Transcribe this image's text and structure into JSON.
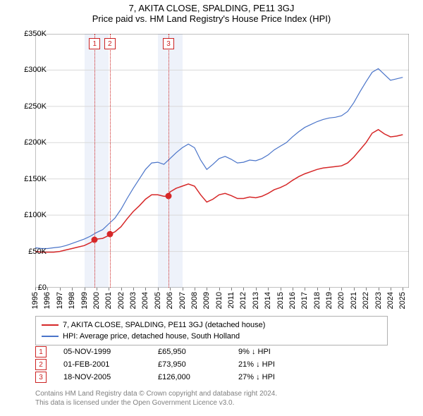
{
  "title_line1": "7, AKITA CLOSE, SPALDING, PE11 3GJ",
  "title_line2": "Price paid vs. HM Land Registry's House Price Index (HPI)",
  "chart": {
    "type": "line",
    "x_domain_years": [
      1995,
      2025.5
    ],
    "y_domain": [
      0,
      350000
    ],
    "y_ticks": [
      0,
      50000,
      100000,
      150000,
      200000,
      250000,
      300000,
      350000
    ],
    "y_tick_labels": [
      "£0",
      "£50K",
      "£100K",
      "£150K",
      "£200K",
      "£250K",
      "£300K",
      "£350K"
    ],
    "x_ticks": [
      1995,
      1996,
      1997,
      1998,
      1999,
      2000,
      2001,
      2002,
      2003,
      2004,
      2005,
      2006,
      2007,
      2008,
      2009,
      2010,
      2011,
      2012,
      2013,
      2014,
      2015,
      2016,
      2017,
      2018,
      2019,
      2020,
      2021,
      2022,
      2023,
      2024,
      2025
    ],
    "background_color": "#ffffff",
    "grid_color": "#d9d9d9",
    "shade_bands_years": [
      [
        1999,
        2001
      ],
      [
        2005,
        2007
      ]
    ],
    "shade_color": "#eef2fa",
    "series": [
      {
        "name": "7, AKITA CLOSE, SPALDING, PE11 3GJ (detached house)",
        "color": "#d62728",
        "line_width": 1.5,
        "points": [
          [
            1995.0,
            50000
          ],
          [
            1995.5,
            49000
          ],
          [
            1996.0,
            49000
          ],
          [
            1996.5,
            49000
          ],
          [
            1997.0,
            50000
          ],
          [
            1997.5,
            52000
          ],
          [
            1998.0,
            54000
          ],
          [
            1998.5,
            56000
          ],
          [
            1999.0,
            58000
          ],
          [
            1999.5,
            62000
          ],
          [
            1999.85,
            65950
          ],
          [
            2000.0,
            67000
          ],
          [
            2000.5,
            68000
          ],
          [
            2001.0,
            72000
          ],
          [
            2001.09,
            73950
          ],
          [
            2001.5,
            77000
          ],
          [
            2002.0,
            84000
          ],
          [
            2002.5,
            95000
          ],
          [
            2003.0,
            105000
          ],
          [
            2003.5,
            113000
          ],
          [
            2004.0,
            122000
          ],
          [
            2004.5,
            128000
          ],
          [
            2005.0,
            128000
          ],
          [
            2005.5,
            126000
          ],
          [
            2005.88,
            126000
          ],
          [
            2006.0,
            132000
          ],
          [
            2006.5,
            137000
          ],
          [
            2007.0,
            140000
          ],
          [
            2007.5,
            143000
          ],
          [
            2008.0,
            140000
          ],
          [
            2008.5,
            128000
          ],
          [
            2009.0,
            118000
          ],
          [
            2009.5,
            122000
          ],
          [
            2010.0,
            128000
          ],
          [
            2010.5,
            130000
          ],
          [
            2011.0,
            127000
          ],
          [
            2011.5,
            123000
          ],
          [
            2012.0,
            123000
          ],
          [
            2012.5,
            125000
          ],
          [
            2013.0,
            124000
          ],
          [
            2013.5,
            126000
          ],
          [
            2014.0,
            130000
          ],
          [
            2014.5,
            135000
          ],
          [
            2015.0,
            138000
          ],
          [
            2015.5,
            142000
          ],
          [
            2016.0,
            148000
          ],
          [
            2016.5,
            153000
          ],
          [
            2017.0,
            157000
          ],
          [
            2017.5,
            160000
          ],
          [
            2018.0,
            163000
          ],
          [
            2018.5,
            165000
          ],
          [
            2019.0,
            166000
          ],
          [
            2019.5,
            167000
          ],
          [
            2020.0,
            168000
          ],
          [
            2020.5,
            172000
          ],
          [
            2021.0,
            180000
          ],
          [
            2021.5,
            190000
          ],
          [
            2022.0,
            200000
          ],
          [
            2022.5,
            213000
          ],
          [
            2023.0,
            218000
          ],
          [
            2023.5,
            212000
          ],
          [
            2024.0,
            208000
          ],
          [
            2024.5,
            209000
          ],
          [
            2025.0,
            211000
          ]
        ]
      },
      {
        "name": "HPI: Average price, detached house, South Holland",
        "color": "#4a74c9",
        "line_width": 1.2,
        "points": [
          [
            1995.0,
            55000
          ],
          [
            1995.5,
            54000
          ],
          [
            1996.0,
            54000
          ],
          [
            1996.5,
            55000
          ],
          [
            1997.0,
            56000
          ],
          [
            1997.5,
            58000
          ],
          [
            1998.0,
            61000
          ],
          [
            1998.5,
            64000
          ],
          [
            1999.0,
            67000
          ],
          [
            1999.5,
            71000
          ],
          [
            2000.0,
            76000
          ],
          [
            2000.5,
            80000
          ],
          [
            2001.0,
            88000
          ],
          [
            2001.5,
            96000
          ],
          [
            2002.0,
            108000
          ],
          [
            2002.5,
            123000
          ],
          [
            2003.0,
            137000
          ],
          [
            2003.5,
            150000
          ],
          [
            2004.0,
            163000
          ],
          [
            2004.5,
            172000
          ],
          [
            2005.0,
            173000
          ],
          [
            2005.5,
            170000
          ],
          [
            2006.0,
            178000
          ],
          [
            2006.5,
            186000
          ],
          [
            2007.0,
            193000
          ],
          [
            2007.5,
            198000
          ],
          [
            2008.0,
            193000
          ],
          [
            2008.5,
            176000
          ],
          [
            2009.0,
            163000
          ],
          [
            2009.5,
            170000
          ],
          [
            2010.0,
            178000
          ],
          [
            2010.5,
            181000
          ],
          [
            2011.0,
            177000
          ],
          [
            2011.5,
            172000
          ],
          [
            2012.0,
            173000
          ],
          [
            2012.5,
            176000
          ],
          [
            2013.0,
            175000
          ],
          [
            2013.5,
            178000
          ],
          [
            2014.0,
            183000
          ],
          [
            2014.5,
            190000
          ],
          [
            2015.0,
            195000
          ],
          [
            2015.5,
            200000
          ],
          [
            2016.0,
            208000
          ],
          [
            2016.5,
            215000
          ],
          [
            2017.0,
            221000
          ],
          [
            2017.5,
            225000
          ],
          [
            2018.0,
            229000
          ],
          [
            2018.5,
            232000
          ],
          [
            2019.0,
            234000
          ],
          [
            2019.5,
            235000
          ],
          [
            2020.0,
            237000
          ],
          [
            2020.5,
            243000
          ],
          [
            2021.0,
            255000
          ],
          [
            2021.5,
            270000
          ],
          [
            2022.0,
            284000
          ],
          [
            2022.5,
            297000
          ],
          [
            2023.0,
            302000
          ],
          [
            2023.5,
            294000
          ],
          [
            2024.0,
            286000
          ],
          [
            2024.5,
            288000
          ],
          [
            2025.0,
            290000
          ]
        ]
      }
    ],
    "sale_markers": [
      {
        "n": "1",
        "year": 1999.85,
        "value": 65950
      },
      {
        "n": "2",
        "year": 2001.09,
        "value": 73950
      },
      {
        "n": "3",
        "year": 2005.88,
        "value": 126000
      }
    ],
    "marker_border_color": "#cc2222",
    "marker_text_color": "#cc2222",
    "marker_dot_color": "#d62728"
  },
  "legend": {
    "border_color": "#b0b0b0",
    "items": [
      {
        "color": "#d62728",
        "label": "7, AKITA CLOSE, SPALDING, PE11 3GJ (detached house)"
      },
      {
        "color": "#4a74c9",
        "label": "HPI: Average price, detached house, South Holland"
      }
    ]
  },
  "sales_table": {
    "marker_border_color": "#cc2222",
    "marker_text_color": "#cc2222",
    "rows": [
      {
        "n": "1",
        "date": "05-NOV-1999",
        "price": "£65,950",
        "delta": "9% ↓ HPI"
      },
      {
        "n": "2",
        "date": "01-FEB-2001",
        "price": "£73,950",
        "delta": "21% ↓ HPI"
      },
      {
        "n": "3",
        "date": "18-NOV-2005",
        "price": "£126,000",
        "delta": "27% ↓ HPI"
      }
    ]
  },
  "footer_line1": "Contains HM Land Registry data © Crown copyright and database right 2024.",
  "footer_line2": "This data is licensed under the Open Government Licence v3.0."
}
